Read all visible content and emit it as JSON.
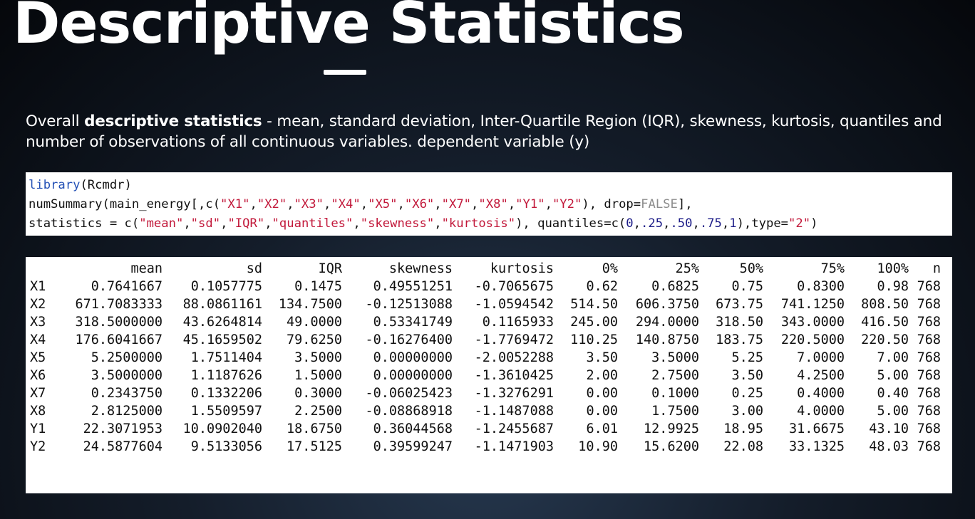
{
  "slide": {
    "title": "Descriptive Statistics",
    "description": {
      "prefix": "Overall ",
      "bold": "descriptive statistics",
      "suffix": " - mean, standard deviation, Inter-Quartile Region (IQR), skewness, kurtosis, quantiles and number of observations of all continuous variables. dependent variable (y)"
    }
  },
  "code_lines": [
    [
      {
        "t": "library",
        "c": "fn"
      },
      {
        "t": "(Rcmdr)",
        "c": ""
      }
    ],
    [
      {
        "t": "numSummary(main_energy[,c(",
        "c": ""
      },
      {
        "t": "\"X1\"",
        "c": "str"
      },
      {
        "t": ",",
        "c": ""
      },
      {
        "t": "\"X2\"",
        "c": "str"
      },
      {
        "t": ",",
        "c": ""
      },
      {
        "t": "\"X3\"",
        "c": "str"
      },
      {
        "t": ",",
        "c": ""
      },
      {
        "t": "\"X4\"",
        "c": "str"
      },
      {
        "t": ",",
        "c": ""
      },
      {
        "t": "\"X5\"",
        "c": "str"
      },
      {
        "t": ",",
        "c": ""
      },
      {
        "t": "\"X6\"",
        "c": "str"
      },
      {
        "t": ",",
        "c": ""
      },
      {
        "t": "\"X7\"",
        "c": "str"
      },
      {
        "t": ",",
        "c": ""
      },
      {
        "t": "\"X8\"",
        "c": "str"
      },
      {
        "t": ",",
        "c": ""
      },
      {
        "t": "\"Y1\"",
        "c": "str"
      },
      {
        "t": ",",
        "c": ""
      },
      {
        "t": "\"Y2\"",
        "c": "str"
      },
      {
        "t": "), drop=",
        "c": ""
      },
      {
        "t": "FALSE",
        "c": "lit"
      },
      {
        "t": "],",
        "c": ""
      }
    ],
    [
      {
        "t": "statistics = c(",
        "c": ""
      },
      {
        "t": "\"mean\"",
        "c": "str"
      },
      {
        "t": ",",
        "c": ""
      },
      {
        "t": "\"sd\"",
        "c": "str"
      },
      {
        "t": ",",
        "c": ""
      },
      {
        "t": "\"IQR\"",
        "c": "str"
      },
      {
        "t": ",",
        "c": ""
      },
      {
        "t": "\"quantiles\"",
        "c": "str"
      },
      {
        "t": ",",
        "c": ""
      },
      {
        "t": "\"skewness\"",
        "c": "str"
      },
      {
        "t": ",",
        "c": ""
      },
      {
        "t": "\"kurtosis\"",
        "c": "str"
      },
      {
        "t": "), quantiles=c(",
        "c": ""
      },
      {
        "t": "0",
        "c": "num"
      },
      {
        "t": ",",
        "c": ""
      },
      {
        "t": ".25",
        "c": "num"
      },
      {
        "t": ",",
        "c": ""
      },
      {
        "t": ".50",
        "c": "num"
      },
      {
        "t": ",",
        "c": ""
      },
      {
        "t": ".75",
        "c": "num"
      },
      {
        "t": ",",
        "c": ""
      },
      {
        "t": "1",
        "c": "num"
      },
      {
        "t": "),type=",
        "c": ""
      },
      {
        "t": "\"2\"",
        "c": "str"
      },
      {
        "t": ")",
        "c": ""
      }
    ]
  ],
  "output": {
    "headers": [
      "",
      "mean",
      "sd",
      "IQR",
      "skewness",
      "kurtosis",
      "0%",
      "25%",
      "50%",
      "75%",
      "100%",
      "n"
    ],
    "rows": [
      [
        "X1",
        "0.7641667",
        "0.1057775",
        "0.1475",
        "0.49551251",
        "-0.7065675",
        "0.62",
        "0.6825",
        "0.75",
        "0.8300",
        "0.98",
        "768"
      ],
      [
        "X2",
        "671.7083333",
        "88.0861161",
        "134.7500",
        "-0.12513088",
        "-1.0594542",
        "514.50",
        "606.3750",
        "673.75",
        "741.1250",
        "808.50",
        "768"
      ],
      [
        "X3",
        "318.5000000",
        "43.6264814",
        "49.0000",
        "0.53341749",
        "0.1165933",
        "245.00",
        "294.0000",
        "318.50",
        "343.0000",
        "416.50",
        "768"
      ],
      [
        "X4",
        "176.6041667",
        "45.1659502",
        "79.6250",
        "-0.16276400",
        "-1.7769472",
        "110.25",
        "140.8750",
        "183.75",
        "220.5000",
        "220.50",
        "768"
      ],
      [
        "X5",
        "5.2500000",
        "1.7511404",
        "3.5000",
        "0.00000000",
        "-2.0052288",
        "3.50",
        "3.5000",
        "5.25",
        "7.0000",
        "7.00",
        "768"
      ],
      [
        "X6",
        "3.5000000",
        "1.1187626",
        "1.5000",
        "0.00000000",
        "-1.3610425",
        "2.00",
        "2.7500",
        "3.50",
        "4.2500",
        "5.00",
        "768"
      ],
      [
        "X7",
        "0.2343750",
        "0.1332206",
        "0.3000",
        "-0.06025423",
        "-1.3276291",
        "0.00",
        "0.1000",
        "0.25",
        "0.4000",
        "0.40",
        "768"
      ],
      [
        "X8",
        "2.8125000",
        "1.5509597",
        "2.2500",
        "-0.08868918",
        "-1.1487088",
        "0.00",
        "1.7500",
        "3.00",
        "4.0000",
        "5.00",
        "768"
      ],
      [
        "Y1",
        "22.3071953",
        "10.0902040",
        "18.6750",
        "0.36044568",
        "-1.2455687",
        "6.01",
        "12.9925",
        "18.95",
        "31.6675",
        "43.10",
        "768"
      ],
      [
        "Y2",
        "24.5877604",
        "9.5133056",
        "17.5125",
        "0.39599247",
        "-1.1471903",
        "10.90",
        "15.6200",
        "22.08",
        "33.1325",
        "48.03",
        "768"
      ]
    ]
  },
  "colors": {
    "string": "#c2183a",
    "function": "#2350b5",
    "literal": "#8d8d8d",
    "number": "#1d1d88"
  }
}
